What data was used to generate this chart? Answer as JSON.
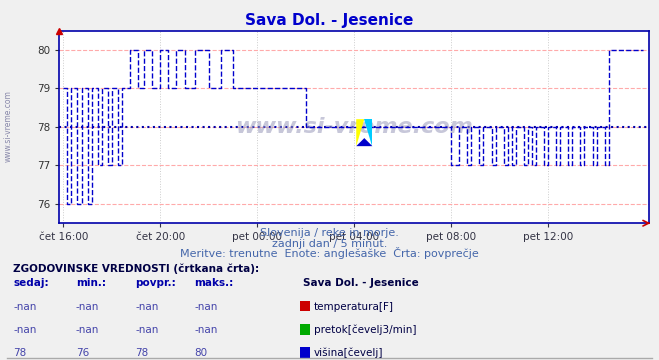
{
  "title": "Sava Dol. - Jesenice",
  "title_color": "#0000cc",
  "bg_color": "#f0f0f0",
  "plot_bg_color": "#ffffff",
  "line_color": "#0000cc",
  "avg_line_color": "#0000aa",
  "grid_h_color": "#ffaaaa",
  "grid_v_color": "#dddddd",
  "ylim": [
    75.5,
    80.5
  ],
  "yticks": [
    76,
    77,
    78,
    79,
    80
  ],
  "subtitle1": "Slovenija / reke in morje.",
  "subtitle2": "zadnji dan / 5 minut.",
  "subtitle3": "Meritve: trenutne  Enote: anglešaške  Črta: povprečje",
  "table_header": "ZGODOVINSKE VREDNOSTI (črtkana črta):",
  "col_headers": [
    "sedaj:",
    "min.:",
    "povpr.:",
    "maks.:"
  ],
  "station_name": "Sava Dol. - Jesenice",
  "rows": [
    [
      "-nan",
      "-nan",
      "-nan",
      "-nan",
      "#cc0000",
      "temperatura[F]"
    ],
    [
      "-nan",
      "-nan",
      "-nan",
      "-nan",
      "#00aa00",
      "pretok[čevelj3/min]"
    ],
    [
      "78",
      "76",
      "78",
      "80",
      "#0000cc",
      "višina[čevelj]"
    ]
  ],
  "watermark": "www.si-vreme.com",
  "avg_value": 78.0,
  "num_points": 288,
  "x_tick_labels": [
    "čet 16:00",
    "čet 20:00",
    "pet 00:00",
    "pet 04:00",
    "pet 08:00",
    "pet 12:00"
  ],
  "x_tick_positions": [
    0,
    48,
    96,
    144,
    192,
    240
  ],
  "left_text": "www.si-vreme.com"
}
